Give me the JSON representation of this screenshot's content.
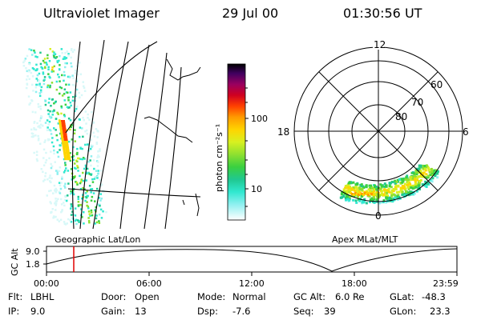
{
  "header": {
    "instrument": "Ultraviolet Imager",
    "date": "29 Jul 00",
    "time": "01:30:56 UT"
  },
  "colorbar": {
    "unit_label": "photon cm⁻²s⁻¹",
    "tick_labels": [
      "100",
      "10"
    ],
    "gradient_colors": [
      "#000000",
      "#400060",
      "#9a0060",
      "#d00020",
      "#ff4000",
      "#ff9a00",
      "#ffd400",
      "#d8f020",
      "#8ee030",
      "#3ad040",
      "#20c890",
      "#30e8d0",
      "#8ff0f0",
      "#d8f8f8",
      "#ffffff"
    ]
  },
  "geo_panel": {
    "label": "Geographic Lat/Lon"
  },
  "polar_panel": {
    "label": "Apex MLat/MLT",
    "mlt_labels": {
      "top": "12",
      "left": "18",
      "right": "6",
      "bottom": "0"
    },
    "lat_labels": [
      "60",
      "70",
      "80"
    ]
  },
  "altitude_plot": {
    "y_label": "GC Alt",
    "y_ticks": [
      "9.0",
      "1.8"
    ],
    "x_ticks": [
      "00:00",
      "06:00",
      "12:00",
      "18:00",
      "23:59"
    ],
    "marker_color": "#e00000"
  },
  "info": {
    "flt_label": "Flt:",
    "flt_value": "LBHL",
    "ip_label": "IP:",
    "ip_value": "9.0",
    "door_label": "Door:",
    "door_value": "Open",
    "gain_label": "Gain:",
    "gain_value": "13",
    "mode_label": "Mode:",
    "mode_value": "Normal",
    "dsp_label": "Dsp:",
    "dsp_value": "-7.6",
    "gcalt_label": "GC Alt:",
    "gcalt_value": "6.0 Re",
    "seq_label": "Seq:",
    "seq_value": "39",
    "glat_label": "GLat:",
    "glat_value": "-48.3",
    "glon_label": "GLon:",
    "glon_value": "23.3"
  }
}
